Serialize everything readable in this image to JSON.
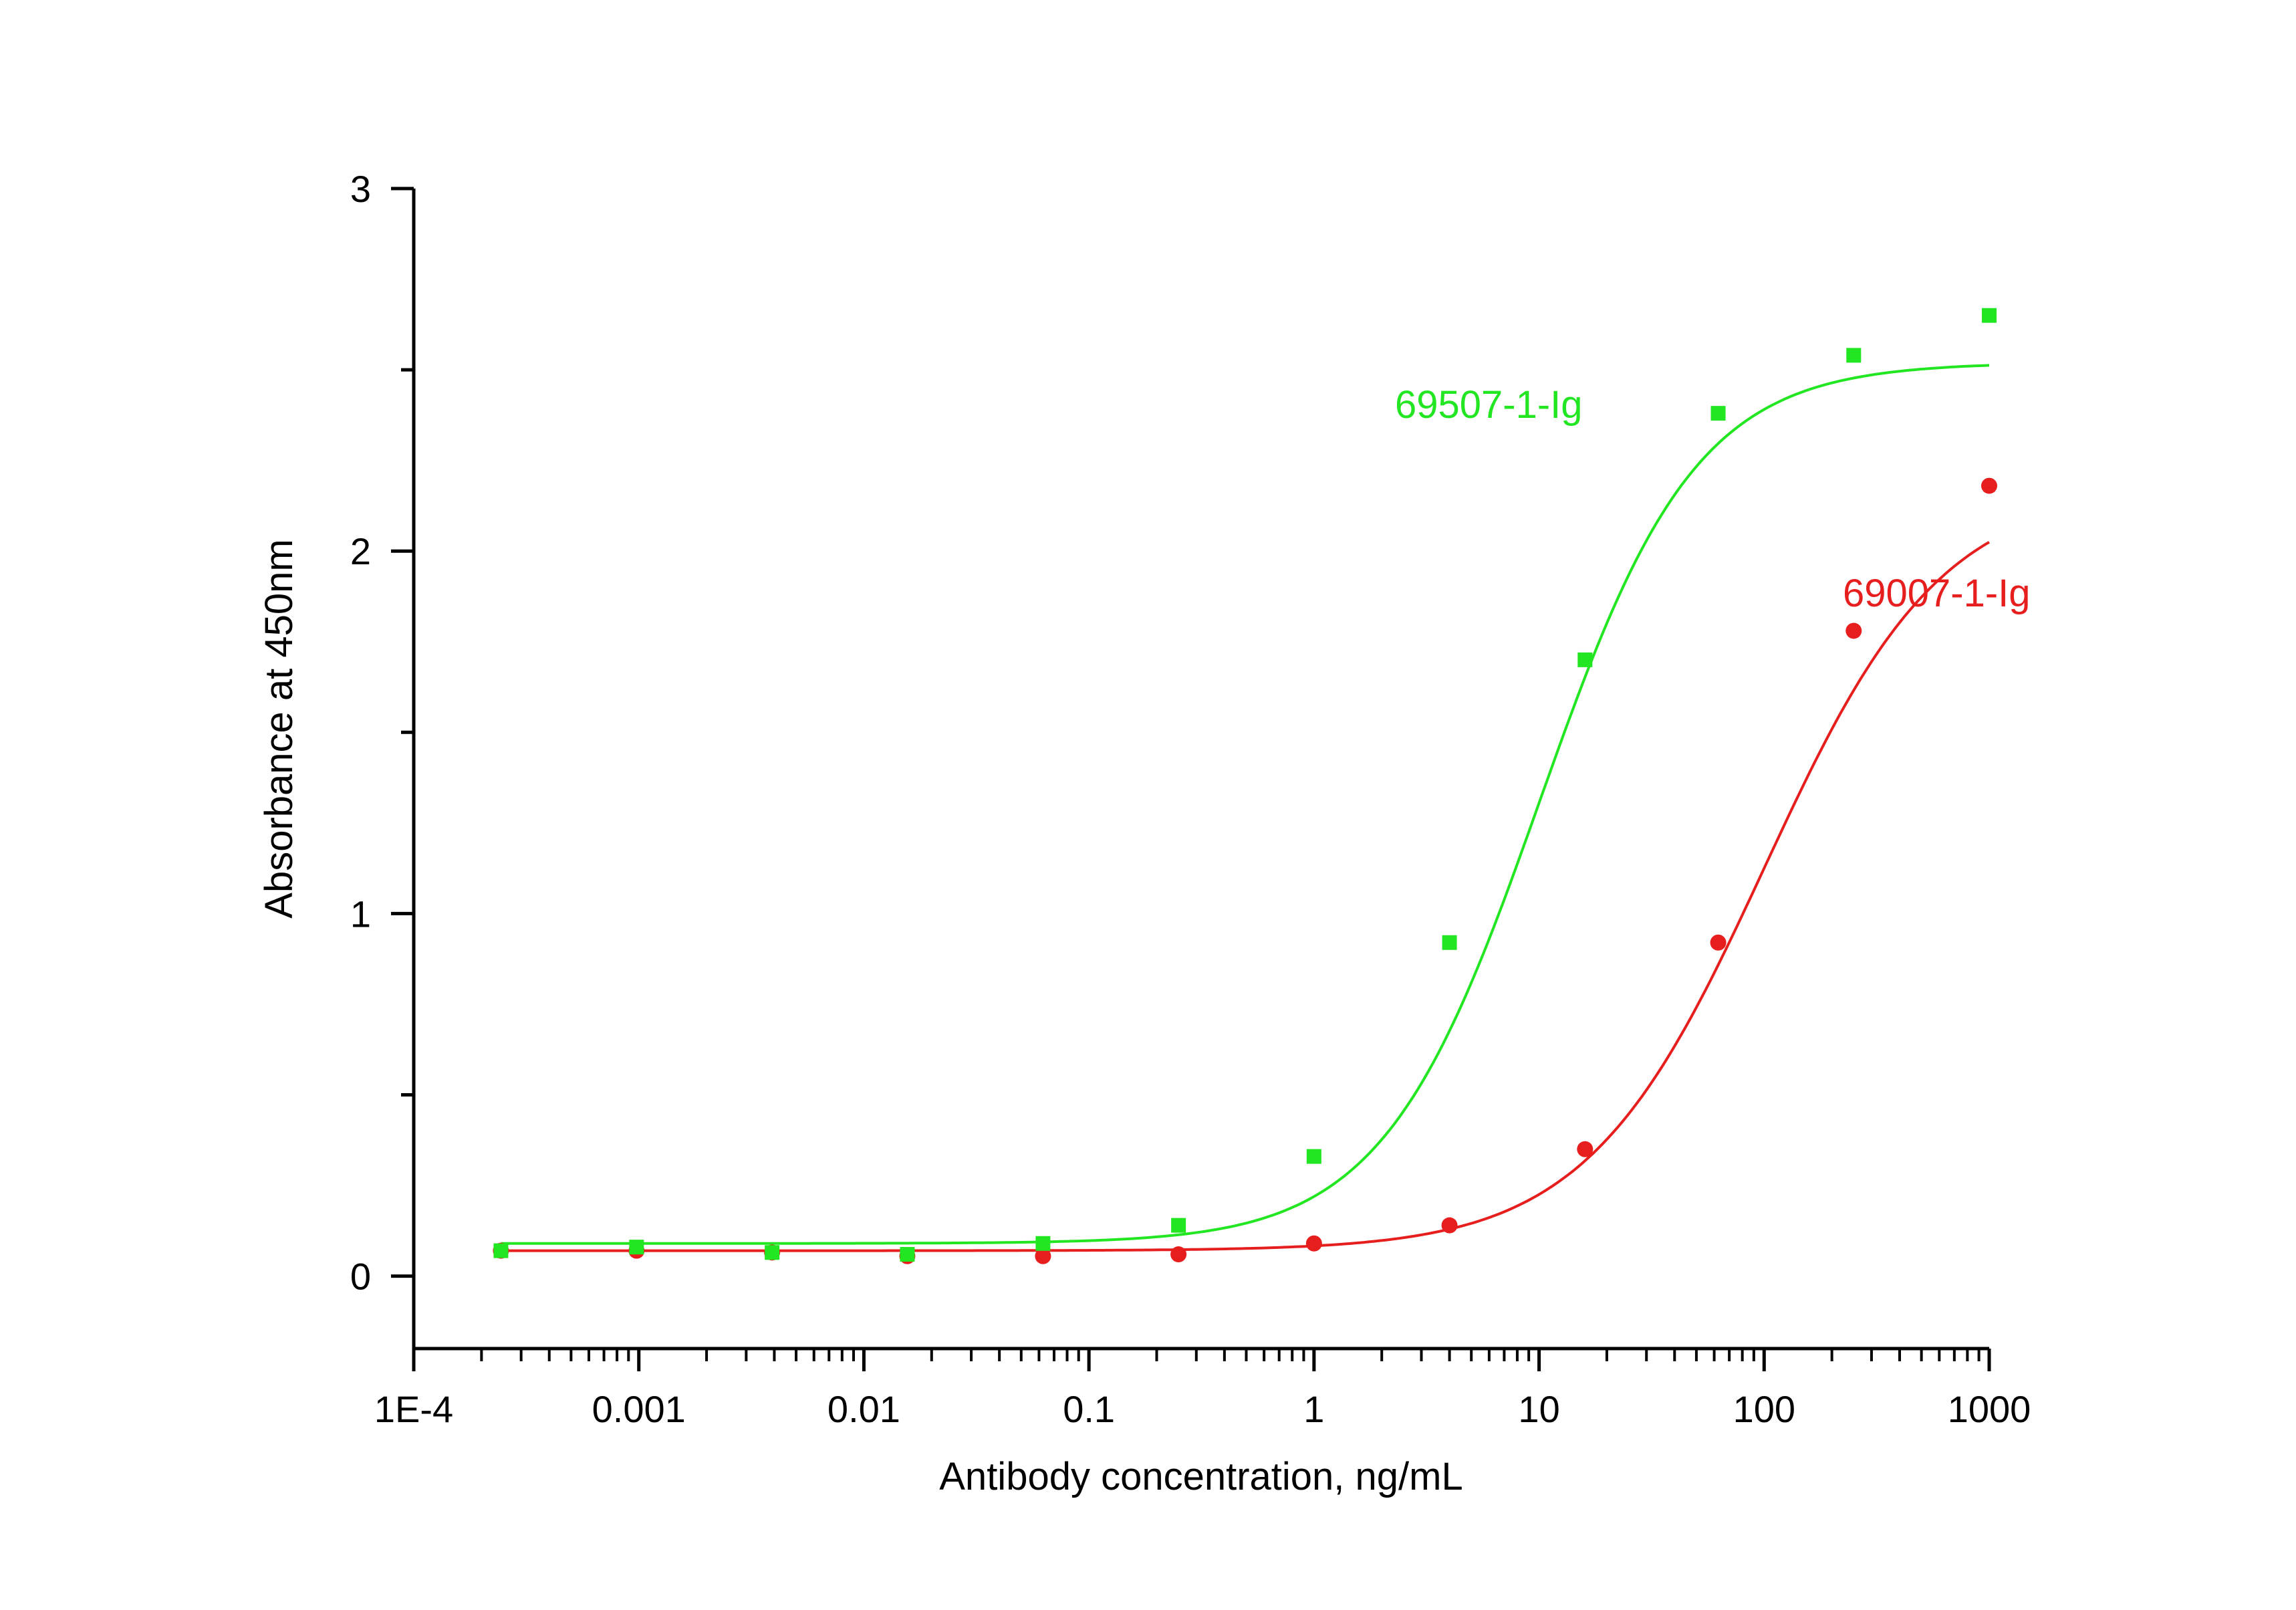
{
  "chart_data": {
    "type": "scatter",
    "xlabel": "Antibody concentration, ng/mL",
    "ylabel": "Absorbance at 450nm",
    "x_scale": "log",
    "xlim": [
      0.0001,
      1000
    ],
    "ylim": [
      -0.2,
      3
    ],
    "x_tick_labels": [
      "1E-4",
      "0.001",
      "0.01",
      "0.1",
      "1",
      "10",
      "100",
      "1000"
    ],
    "y_tick_labels": [
      "0",
      "1",
      "2",
      "3"
    ],
    "grid": false,
    "series": [
      {
        "name": "69507-1-Ig",
        "color": "#22e622",
        "marker": "square",
        "x": [
          0.000244,
          0.000977,
          0.00391,
          0.0156,
          0.0625,
          0.25,
          1,
          4,
          16,
          62.5,
          250,
          1000
        ],
        "y": [
          0.07,
          0.08,
          0.065,
          0.06,
          0.09,
          0.14,
          0.33,
          0.92,
          1.7,
          2.38,
          2.54,
          2.65
        ],
        "fit": {
          "bottom": 0.09,
          "top": 2.52,
          "ec50": 10,
          "hill": 1.25
        }
      },
      {
        "name": "69007-1-Ig",
        "color": "#e61e1e",
        "marker": "circle",
        "x": [
          0.000244,
          0.000977,
          0.00391,
          0.0156,
          0.0625,
          0.25,
          1,
          4,
          16,
          62.5,
          250,
          1000
        ],
        "y": [
          0.07,
          0.07,
          0.065,
          0.055,
          0.055,
          0.06,
          0.09,
          0.14,
          0.35,
          0.92,
          1.78,
          2.18
        ],
        "fit": {
          "bottom": 0.07,
          "top": 2.18,
          "ec50": 100,
          "hill": 1.1
        }
      }
    ]
  }
}
